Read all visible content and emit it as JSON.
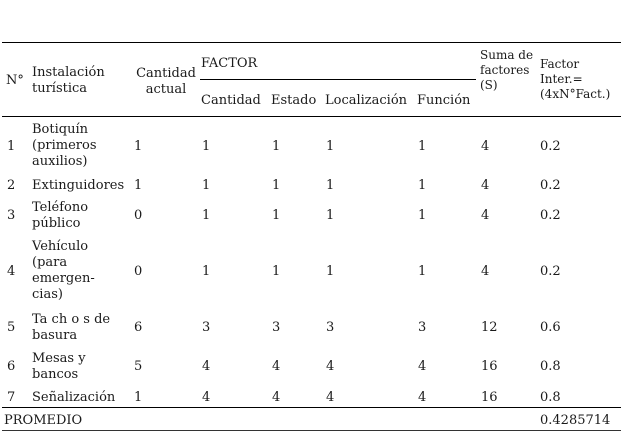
{
  "headers": {
    "num": "N°",
    "instalacion": "Instalación turística",
    "cantidad_actual": "Cantidad actual",
    "factor": "FACTOR",
    "sub": [
      "Cantidad",
      "Estado",
      "Localización",
      "Función"
    ],
    "suma": "Suma de factores (S)",
    "factor_inter": "Factor Inter.= (4xN°Fact.)"
  },
  "rows": [
    {
      "n": "1",
      "name": "Botiquín (primeros auxilios)",
      "cant": "1",
      "f": [
        "1",
        "1",
        "1",
        "1"
      ],
      "s": "4",
      "fi": "0.2"
    },
    {
      "n": "2",
      "name": "Extinguidores",
      "cant": "1",
      "f": [
        "1",
        "1",
        "1",
        "1"
      ],
      "s": "4",
      "fi": "0.2"
    },
    {
      "n": "3",
      "name": "Teléfono público",
      "cant": "0",
      "f": [
        "1",
        "1",
        "1",
        "1"
      ],
      "s": "4",
      "fi": "0.2"
    },
    {
      "n": "4",
      "name": "Vehículo (para emergen-cias)",
      "cant": "0",
      "f": [
        "1",
        "1",
        "1",
        "1"
      ],
      "s": "4",
      "fi": "0.2"
    },
    {
      "n": "5",
      "name": "Ta ch o s de basura",
      "cant": "6",
      "f": [
        "3",
        "3",
        "3",
        "3"
      ],
      "s": "12",
      "fi": "0.6"
    },
    {
      "n": "6",
      "name": "Mesas y bancos",
      "cant": "5",
      "f": [
        "4",
        "4",
        "4",
        "4"
      ],
      "s": "16",
      "fi": "0.8"
    },
    {
      "n": "7",
      "name": "Señalización",
      "cant": "1",
      "f": [
        "4",
        "4",
        "4",
        "4"
      ],
      "s": "16",
      "fi": "0.8"
    }
  ],
  "footer": {
    "label": "PROMEDIO",
    "value": "0.4285714"
  }
}
